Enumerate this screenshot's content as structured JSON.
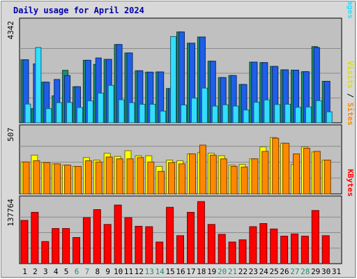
{
  "chart_data": {
    "title": "Daily usage for April 2024",
    "days": [
      "1",
      "2",
      "3",
      "4",
      "5",
      "6",
      "7",
      "8",
      "9",
      "10",
      "11",
      "12",
      "13",
      "14",
      "15",
      "16",
      "17",
      "18",
      "19",
      "20",
      "21",
      "22",
      "23",
      "24",
      "25",
      "26",
      "27",
      "28",
      "29",
      "30",
      "31"
    ],
    "weekend_days": [
      "6",
      "7",
      "13",
      "14",
      "20",
      "21",
      "27",
      "28"
    ],
    "panels": [
      {
        "type": "bar",
        "ymax_label": "4342",
        "ylim": [
          0,
          4342
        ],
        "legend": [
          "Pages",
          "Files",
          "Hits"
        ],
        "series": [
          {
            "name": "Hits",
            "color": "#1e8e6a",
            "values": [
              2760,
              620,
              1780,
              1180,
              2300,
              1580,
              2740,
              2560,
              2780,
              3430,
              3060,
              2280,
              2220,
              2230,
              1500,
              3980,
              3490,
              3760,
              2700,
              1980,
              2070,
              1680,
              2660,
              2640,
              2470,
              2320,
              2310,
              2240,
              3340,
              1820,
              0
            ]
          },
          {
            "name": "Files",
            "color": "#1e5ee8",
            "values": [
              2760,
              2580,
              1780,
              1900,
              2070,
              1580,
              2740,
              2840,
              2780,
              3430,
              3060,
              2280,
              2220,
              2230,
              1500,
              3980,
              3490,
              3760,
              2700,
              1980,
              2070,
              1680,
              2660,
              2640,
              2470,
              2320,
              2310,
              2240,
              3300,
              1820,
              0
            ]
          },
          {
            "name": "Pages",
            "color": "#33ddff",
            "values": [
              820,
              3300,
              620,
              880,
              890,
              670,
              960,
              1300,
              1640,
              1010,
              880,
              810,
              810,
              510,
              3780,
              780,
              1080,
              1520,
              730,
              790,
              730,
              560,
              900,
              1000,
              800,
              810,
              680,
              690,
              970,
              480,
              0
            ]
          }
        ]
      },
      {
        "type": "bar",
        "ymax_label": "507",
        "ylim": [
          0,
          507
        ],
        "legend": [
          "Sites",
          "Visits"
        ],
        "series": [
          {
            "name": "Visits",
            "color": "#ffff00",
            "values": [
              255,
              310,
              250,
              240,
              230,
              220,
              290,
              270,
              325,
              300,
              345,
              305,
              305,
              220,
              270,
              265,
              320,
              330,
              325,
              305,
              230,
              235,
              280,
              375,
              450,
              405,
              235,
              375,
              335,
              270,
              0
            ]
          },
          {
            "name": "Sites",
            "color": "#ff8800",
            "values": [
              255,
              265,
              250,
              240,
              230,
              220,
              265,
              255,
              295,
              280,
              280,
              290,
              255,
              180,
              250,
              240,
              320,
              390,
              310,
              280,
              220,
              215,
              280,
              340,
              445,
              405,
              320,
              365,
              340,
              270,
              0
            ]
          }
        ]
      },
      {
        "type": "bar",
        "ymax_label": "137764",
        "ylim": [
          0,
          137764
        ],
        "legend": [
          "KBytes"
        ],
        "series": [
          {
            "name": "KBytes",
            "color": "#ff0000",
            "values": [
              96000,
              114000,
              49000,
              78000,
              78000,
              58000,
              102000,
              120000,
              87000,
              130000,
              102000,
              83000,
              82000,
              48000,
              125000,
              62000,
              114000,
              137764,
              87000,
              65000,
              48000,
              53000,
              82000,
              89000,
              77000,
              61000,
              66000,
              61000,
              118000,
              62000,
              0
            ]
          }
        ]
      }
    ],
    "legend_colors": {
      "Pages": "#33ddff",
      "Files": "#1e5ee8",
      "Hits": "#1e8e6a",
      "Sites": "#ff8800",
      "Visits": "#dddd00",
      "KBytes": "#ff0000"
    },
    "colors": {
      "background": "#d8d8d8",
      "plot": "#c0c0c0",
      "title": "#0000aa",
      "weekday_label": "#000000",
      "weekend_label": "#1e8e6a"
    }
  }
}
